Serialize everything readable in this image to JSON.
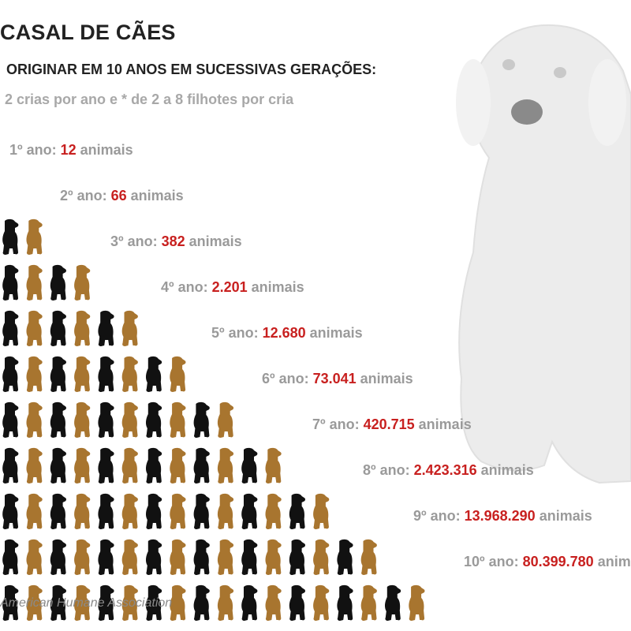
{
  "title": "CASAL DE CÃES",
  "subtitle": "ORIGINAR EM 10 ANOS EM SUCESSIVAS GERAÇÕES:",
  "note": "2 crias por ano e  * de 2 a 8 filhotes por cria",
  "source": "American Humane Association",
  "colors": {
    "value": "#c8201f",
    "label": "#9a9a9a",
    "dog_dark": "#111111",
    "dog_brown": "#a8752f"
  },
  "chart_data": {
    "type": "table",
    "rows": [
      {
        "year": "1º",
        "value_label": "12",
        "value": 12,
        "dog_icons": 0
      },
      {
        "year": "2º",
        "value_label": "66",
        "value": 66,
        "dog_icons": 2
      },
      {
        "year": "3º",
        "value_label": "382",
        "value": 382,
        "dog_icons": 4
      },
      {
        "year": "4º",
        "value_label": "2.201",
        "value": 2201,
        "dog_icons": 6
      },
      {
        "year": "5º",
        "value_label": "12.680",
        "value": 12680,
        "dog_icons": 8
      },
      {
        "year": "6º",
        "value_label": "73.041",
        "value": 73041,
        "dog_icons": 10
      },
      {
        "year": "7º",
        "value_label": "420.715",
        "value": 420715,
        "dog_icons": 12
      },
      {
        "year": "8º",
        "value_label": "2.423.316",
        "value": 2423316,
        "dog_icons": 14
      },
      {
        "year": "9º",
        "value_label": "13.968.290",
        "value": 13968290,
        "dog_icons": 16
      },
      {
        "year": "10º",
        "value_label": "80.399.780",
        "value": 80399780,
        "dog_icons": 18
      }
    ],
    "year_word": "ano:",
    "unit": "animais"
  }
}
